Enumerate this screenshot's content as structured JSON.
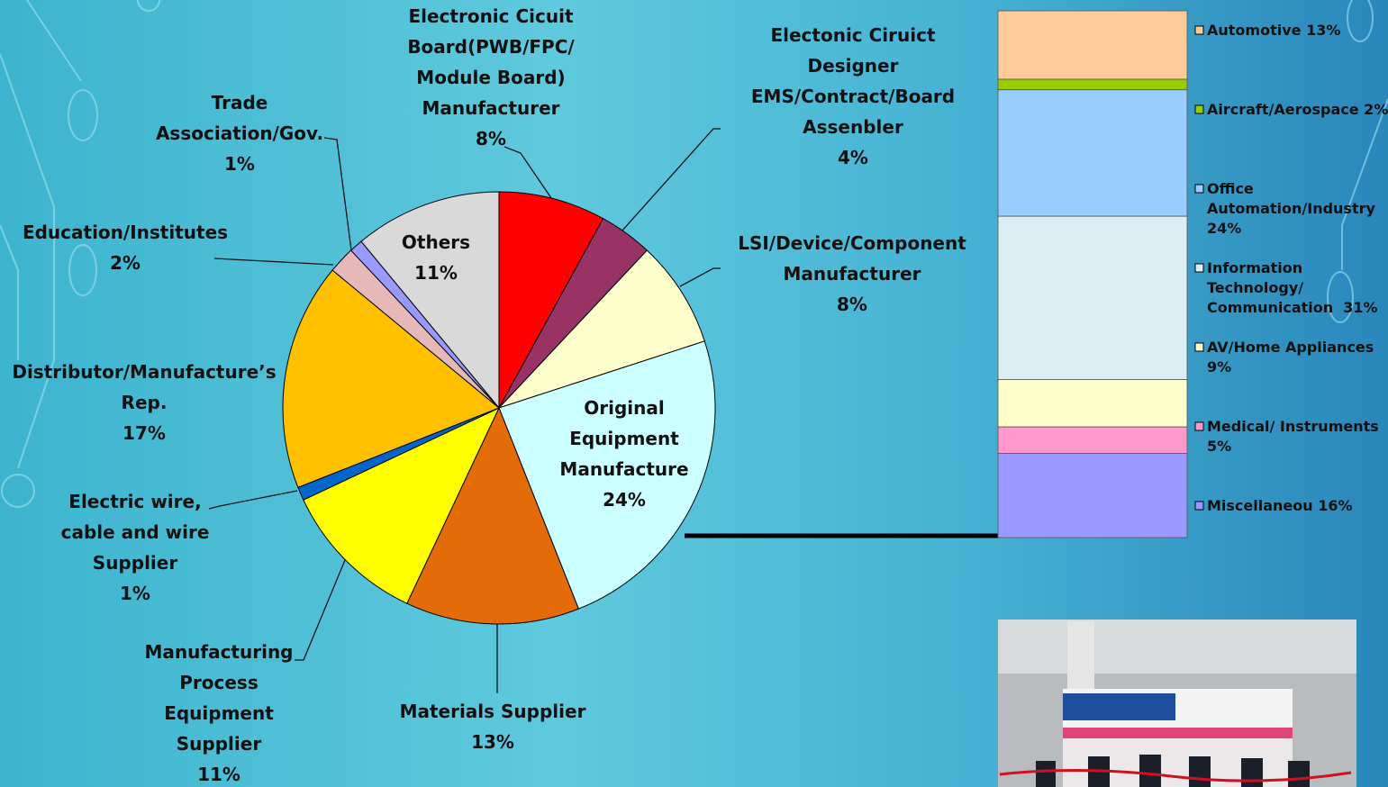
{
  "chart_data": [
    {
      "type": "pie",
      "categories": [
        "Electronic Cicuit\nBoard(PWB/FPC/\nModule Board)\nManufacturer",
        "Electonic Ciruict\nDesigner\nEMS/Contract/Board\nAssenbler",
        "LSI/Device/Component\nManufacturer",
        "Original\nEquipment\nManufacture",
        "Materials Supplier",
        "Manufacturing\nProcess\nEquipment\nSupplier",
        "Electric wire,\ncable and wire\nSupplier",
        "Distributor/Manufacture’s\nRep.",
        "Education/Institutes",
        "Trade\nAssociation/Gov.",
        "Others"
      ],
      "values": [
        8,
        4,
        8,
        24,
        13,
        11,
        1,
        17,
        2,
        1,
        11
      ],
      "value_labels": [
        "8%",
        "4%",
        "8%",
        "24%",
        "13%",
        "11%",
        "1%",
        "17%",
        "2%",
        "1%",
        "11%"
      ],
      "colors": [
        "#ff0000",
        "#993366",
        "#ffffcc",
        "#ccffff",
        "#e36c09",
        "#ffff00",
        "#0066cc",
        "#ffc000",
        "#e6b9b8",
        "#9999ff",
        "#d9d9d9"
      ]
    },
    {
      "type": "stacked_bar",
      "series": [
        {
          "name": "Automotive 13%",
          "color": "#ffcc99",
          "values": [
            13
          ]
        },
        {
          "name": "Aircraft/Aerospace 2%",
          "color": "#99cc00",
          "values": [
            2
          ]
        },
        {
          "name": "Office\nAutomation/Industry\n24%",
          "color": "#99ccff",
          "values": [
            24
          ]
        },
        {
          "name": "Information\nTechnology/\nCommunication  31%",
          "color": "#dbeef4",
          "values": [
            31
          ]
        },
        {
          "name": "AV/Home Appliances\n9%",
          "color": "#ffffcc",
          "values": [
            9
          ]
        },
        {
          "name": "Medical/ Instruments\n5%",
          "color": "#ff99cc",
          "values": [
            5
          ]
        },
        {
          "name": "Miscellaneou 16%",
          "color": "#9999ff",
          "values": [
            16
          ]
        }
      ],
      "ylim": [
        0,
        100
      ]
    }
  ]
}
